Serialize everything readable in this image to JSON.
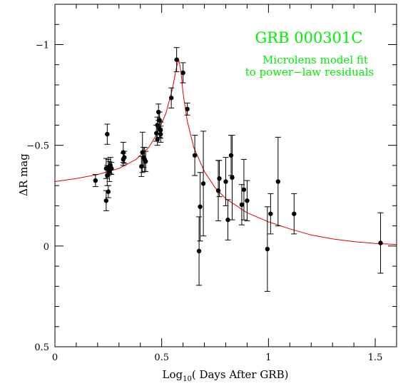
{
  "chart_data": {
    "type": "scatter",
    "xlabel_main": "Log",
    "xlabel_sub": "10",
    "xlabel_rest": "( Days After GRB)",
    "ylabel": "ΔR mag",
    "xlim": [
      0,
      1.6
    ],
    "ylim": [
      0.5,
      -1.2
    ],
    "y_inverted": true,
    "grid": false,
    "xticks": [
      {
        "value": 0,
        "label": "0"
      },
      {
        "value": 0.5,
        "label": "0.5"
      },
      {
        "value": 1,
        "label": "1"
      },
      {
        "value": 1.5,
        "label": "1.5"
      }
    ],
    "yticks": [
      {
        "value": -1,
        "label": "−1"
      },
      {
        "value": -0.5,
        "label": "−0.5"
      },
      {
        "value": 0,
        "label": "0"
      },
      {
        "value": 0.5,
        "label": "0.5"
      }
    ],
    "annotations": {
      "title": "GRB 000301C",
      "line1": "Microlens model fit",
      "line2": "to power−law residuals",
      "color": "#00ee00"
    },
    "series": [
      {
        "kind": "points",
        "color": "#000000",
        "points": [
          {
            "x": 0.19,
            "y": -0.325,
            "err": 0.03
          },
          {
            "x": 0.24,
            "y": -0.385,
            "err": 0.05
          },
          {
            "x": 0.24,
            "y": -0.225,
            "err": 0.05
          },
          {
            "x": 0.245,
            "y": -0.555,
            "err": 0.05
          },
          {
            "x": 0.245,
            "y": -0.35,
            "err": 0.05
          },
          {
            "x": 0.25,
            "y": -0.39,
            "err": 0.04
          },
          {
            "x": 0.25,
            "y": -0.27,
            "err": 0.03
          },
          {
            "x": 0.255,
            "y": -0.37,
            "err": 0.05
          },
          {
            "x": 0.26,
            "y": -0.4,
            "err": 0.04
          },
          {
            "x": 0.265,
            "y": -0.385,
            "err": 0.03
          },
          {
            "x": 0.32,
            "y": -0.465,
            "err": 0.05
          },
          {
            "x": 0.32,
            "y": -0.43,
            "err": 0.03
          },
          {
            "x": 0.325,
            "y": -0.44,
            "err": 0.03
          },
          {
            "x": 0.405,
            "y": -0.395,
            "err": 0.05
          },
          {
            "x": 0.41,
            "y": -0.465,
            "err": 0.1
          },
          {
            "x": 0.415,
            "y": -0.44,
            "err": 0.05
          },
          {
            "x": 0.42,
            "y": -0.43,
            "err": 0.06
          },
          {
            "x": 0.425,
            "y": -0.42,
            "err": 0.05
          },
          {
            "x": 0.475,
            "y": -0.56,
            "err": 0.04
          },
          {
            "x": 0.48,
            "y": -0.53,
            "err": 0.03
          },
          {
            "x": 0.48,
            "y": -0.6,
            "err": 0.04
          },
          {
            "x": 0.485,
            "y": -0.665,
            "err": 0.04
          },
          {
            "x": 0.49,
            "y": -0.625,
            "err": 0.04
          },
          {
            "x": 0.49,
            "y": -0.58,
            "err": 0.04
          },
          {
            "x": 0.495,
            "y": -0.575,
            "err": 0.04
          },
          {
            "x": 0.495,
            "y": -0.555,
            "err": 0.04
          },
          {
            "x": 0.545,
            "y": -0.735,
            "err": 0.05
          },
          {
            "x": 0.57,
            "y": -0.925,
            "err": 0.06
          },
          {
            "x": 0.6,
            "y": -0.86,
            "err": 0.05
          },
          {
            "x": 0.62,
            "y": -0.68,
            "err": 0.03
          },
          {
            "x": 0.655,
            "y": -0.45,
            "err": 0.1
          },
          {
            "x": 0.675,
            "y": 0.025,
            "err": 0.17
          },
          {
            "x": 0.68,
            "y": -0.195,
            "err": 0.17
          },
          {
            "x": 0.695,
            "y": -0.31,
            "err": 0.26
          },
          {
            "x": 0.765,
            "y": -0.275,
            "err": 0.15
          },
          {
            "x": 0.77,
            "y": -0.335,
            "err": 0.09
          },
          {
            "x": 0.8,
            "y": -0.32,
            "err": 0.12
          },
          {
            "x": 0.81,
            "y": -0.13,
            "err": 0.1
          },
          {
            "x": 0.825,
            "y": -0.45,
            "err": 0.1
          },
          {
            "x": 0.83,
            "y": -0.34,
            "err": 0.21
          },
          {
            "x": 0.875,
            "y": -0.205,
            "err": 0.1
          },
          {
            "x": 0.885,
            "y": -0.28,
            "err": 0.15
          },
          {
            "x": 0.9,
            "y": -0.225,
            "err": 0.1
          },
          {
            "x": 0.995,
            "y": 0.015,
            "err": 0.21
          },
          {
            "x": 1.01,
            "y": -0.16,
            "err": 0.1
          },
          {
            "x": 1.045,
            "y": -0.32,
            "err": 0.22
          },
          {
            "x": 1.12,
            "y": -0.16,
            "err": 0.1
          },
          {
            "x": 1.525,
            "y": -0.015,
            "err": 0.15
          }
        ]
      },
      {
        "kind": "line",
        "color": "#dd0000",
        "points": [
          {
            "x": 0.0,
            "y": -0.32
          },
          {
            "x": 0.1,
            "y": -0.335
          },
          {
            "x": 0.2,
            "y": -0.355
          },
          {
            "x": 0.3,
            "y": -0.385
          },
          {
            "x": 0.38,
            "y": -0.43
          },
          {
            "x": 0.44,
            "y": -0.49
          },
          {
            "x": 0.48,
            "y": -0.56
          },
          {
            "x": 0.52,
            "y": -0.66
          },
          {
            "x": 0.55,
            "y": -0.78
          },
          {
            "x": 0.57,
            "y": -0.89
          },
          {
            "x": 0.58,
            "y": -0.925
          },
          {
            "x": 0.59,
            "y": -0.87
          },
          {
            "x": 0.6,
            "y": -0.76
          },
          {
            "x": 0.62,
            "y": -0.62
          },
          {
            "x": 0.65,
            "y": -0.49
          },
          {
            "x": 0.7,
            "y": -0.37
          },
          {
            "x": 0.75,
            "y": -0.29
          },
          {
            "x": 0.8,
            "y": -0.235
          },
          {
            "x": 0.9,
            "y": -0.165
          },
          {
            "x": 1.0,
            "y": -0.12
          },
          {
            "x": 1.1,
            "y": -0.085
          },
          {
            "x": 1.2,
            "y": -0.055
          },
          {
            "x": 1.3,
            "y": -0.035
          },
          {
            "x": 1.4,
            "y": -0.022
          },
          {
            "x": 1.5,
            "y": -0.013
          },
          {
            "x": 1.6,
            "y": -0.008
          }
        ]
      }
    ]
  }
}
